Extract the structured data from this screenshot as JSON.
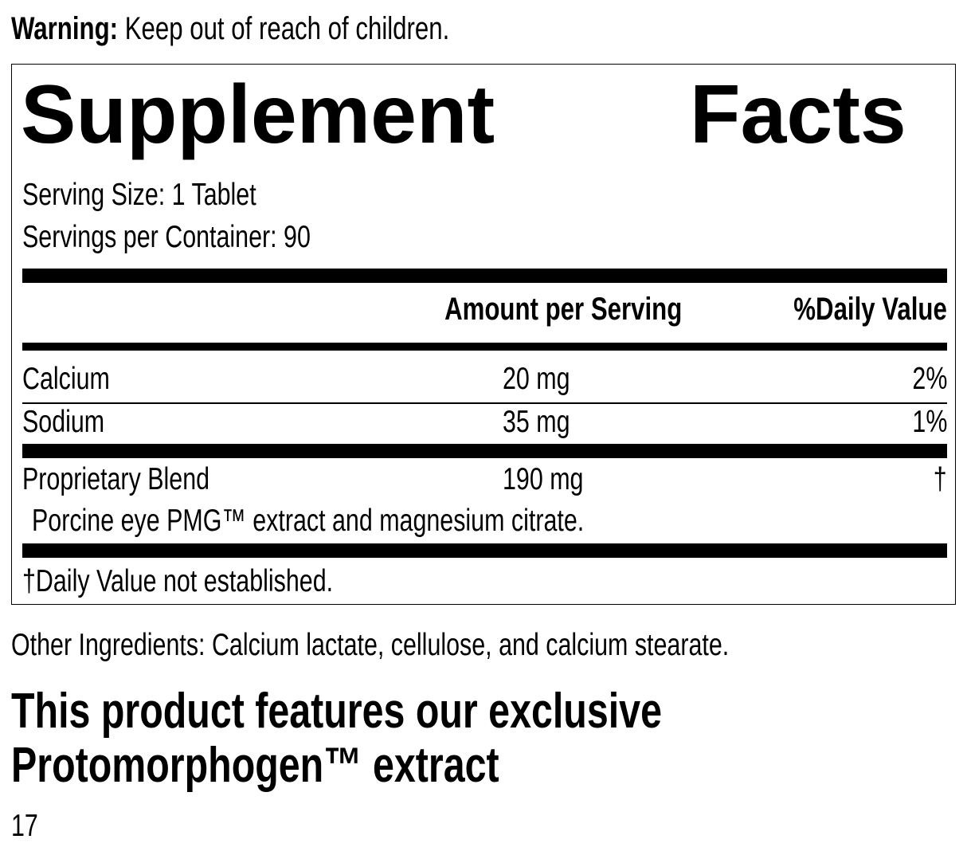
{
  "warning": {
    "label": "Warning:",
    "text": " Keep out of reach of children."
  },
  "facts": {
    "title_left": "Supplement",
    "title_right": "Facts",
    "serving_size": "Serving Size: 1 Tablet",
    "servings_per_container": "Servings per Container: 90",
    "header": {
      "amount": "Amount per Serving",
      "dv": "%Daily Value"
    },
    "rows": [
      {
        "name": "Calcium",
        "amount": "20 mg",
        "dv": "2%"
      },
      {
        "name": "Sodium",
        "amount": "35 mg",
        "dv": "1%"
      },
      {
        "name": "Proprietary Blend",
        "amount": "190 mg",
        "dv": "†"
      }
    ],
    "blend_description": "Porcine eye PMG™ extract and magnesium citrate.",
    "footnote": "†Daily Value not established."
  },
  "other_ingredients": "Other Ingredients: Calcium lactate, cellulose, and calcium stearate.",
  "feature_heading": [
    "This product features our exclusive",
    "Protomorphogen™ extract"
  ],
  "page_number": "17"
}
